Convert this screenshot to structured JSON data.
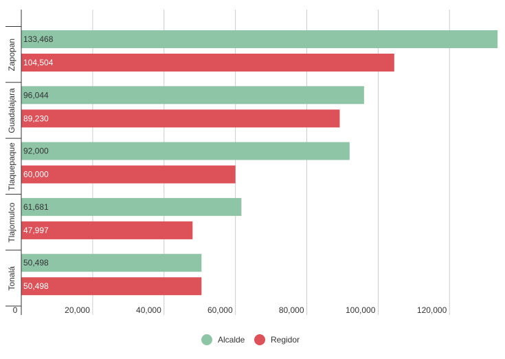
{
  "chart_data": {
    "type": "bar",
    "orientation": "horizontal",
    "categories": [
      "Zapopan",
      "Guadalajara",
      "Tlaquepaque",
      "Tlajomulco",
      "Tonalá"
    ],
    "series": [
      {
        "name": "Alcalde",
        "color": "#8ec5a6",
        "label_color": "#333333",
        "values": [
          133468,
          96044,
          92000,
          61681,
          50498
        ],
        "labels": [
          "133,468",
          "96,044",
          "92,000",
          "61,681",
          "50,498"
        ]
      },
      {
        "name": "Regidor",
        "color": "#dc5258",
        "label_color": "#ffffff",
        "values": [
          104504,
          89230,
          60000,
          47997,
          50498
        ],
        "labels": [
          "104,504",
          "89,230",
          "60,000",
          "47,997",
          "50,498"
        ]
      }
    ],
    "xlim": [
      0,
      134000
    ],
    "ticks": [
      {
        "value": 0,
        "label": "0"
      },
      {
        "value": 20000,
        "label": "20,000"
      },
      {
        "value": 40000,
        "label": "40,000"
      },
      {
        "value": 60000,
        "label": "60,000"
      },
      {
        "value": 80000,
        "label": "80,000"
      },
      {
        "value": 100000,
        "label": "100,000"
      },
      {
        "value": 120000,
        "label": "120,000"
      }
    ],
    "grid": true,
    "legend_position": "bottom-center",
    "colors": {
      "grid": "#cccccc",
      "axis": "#333333"
    }
  }
}
